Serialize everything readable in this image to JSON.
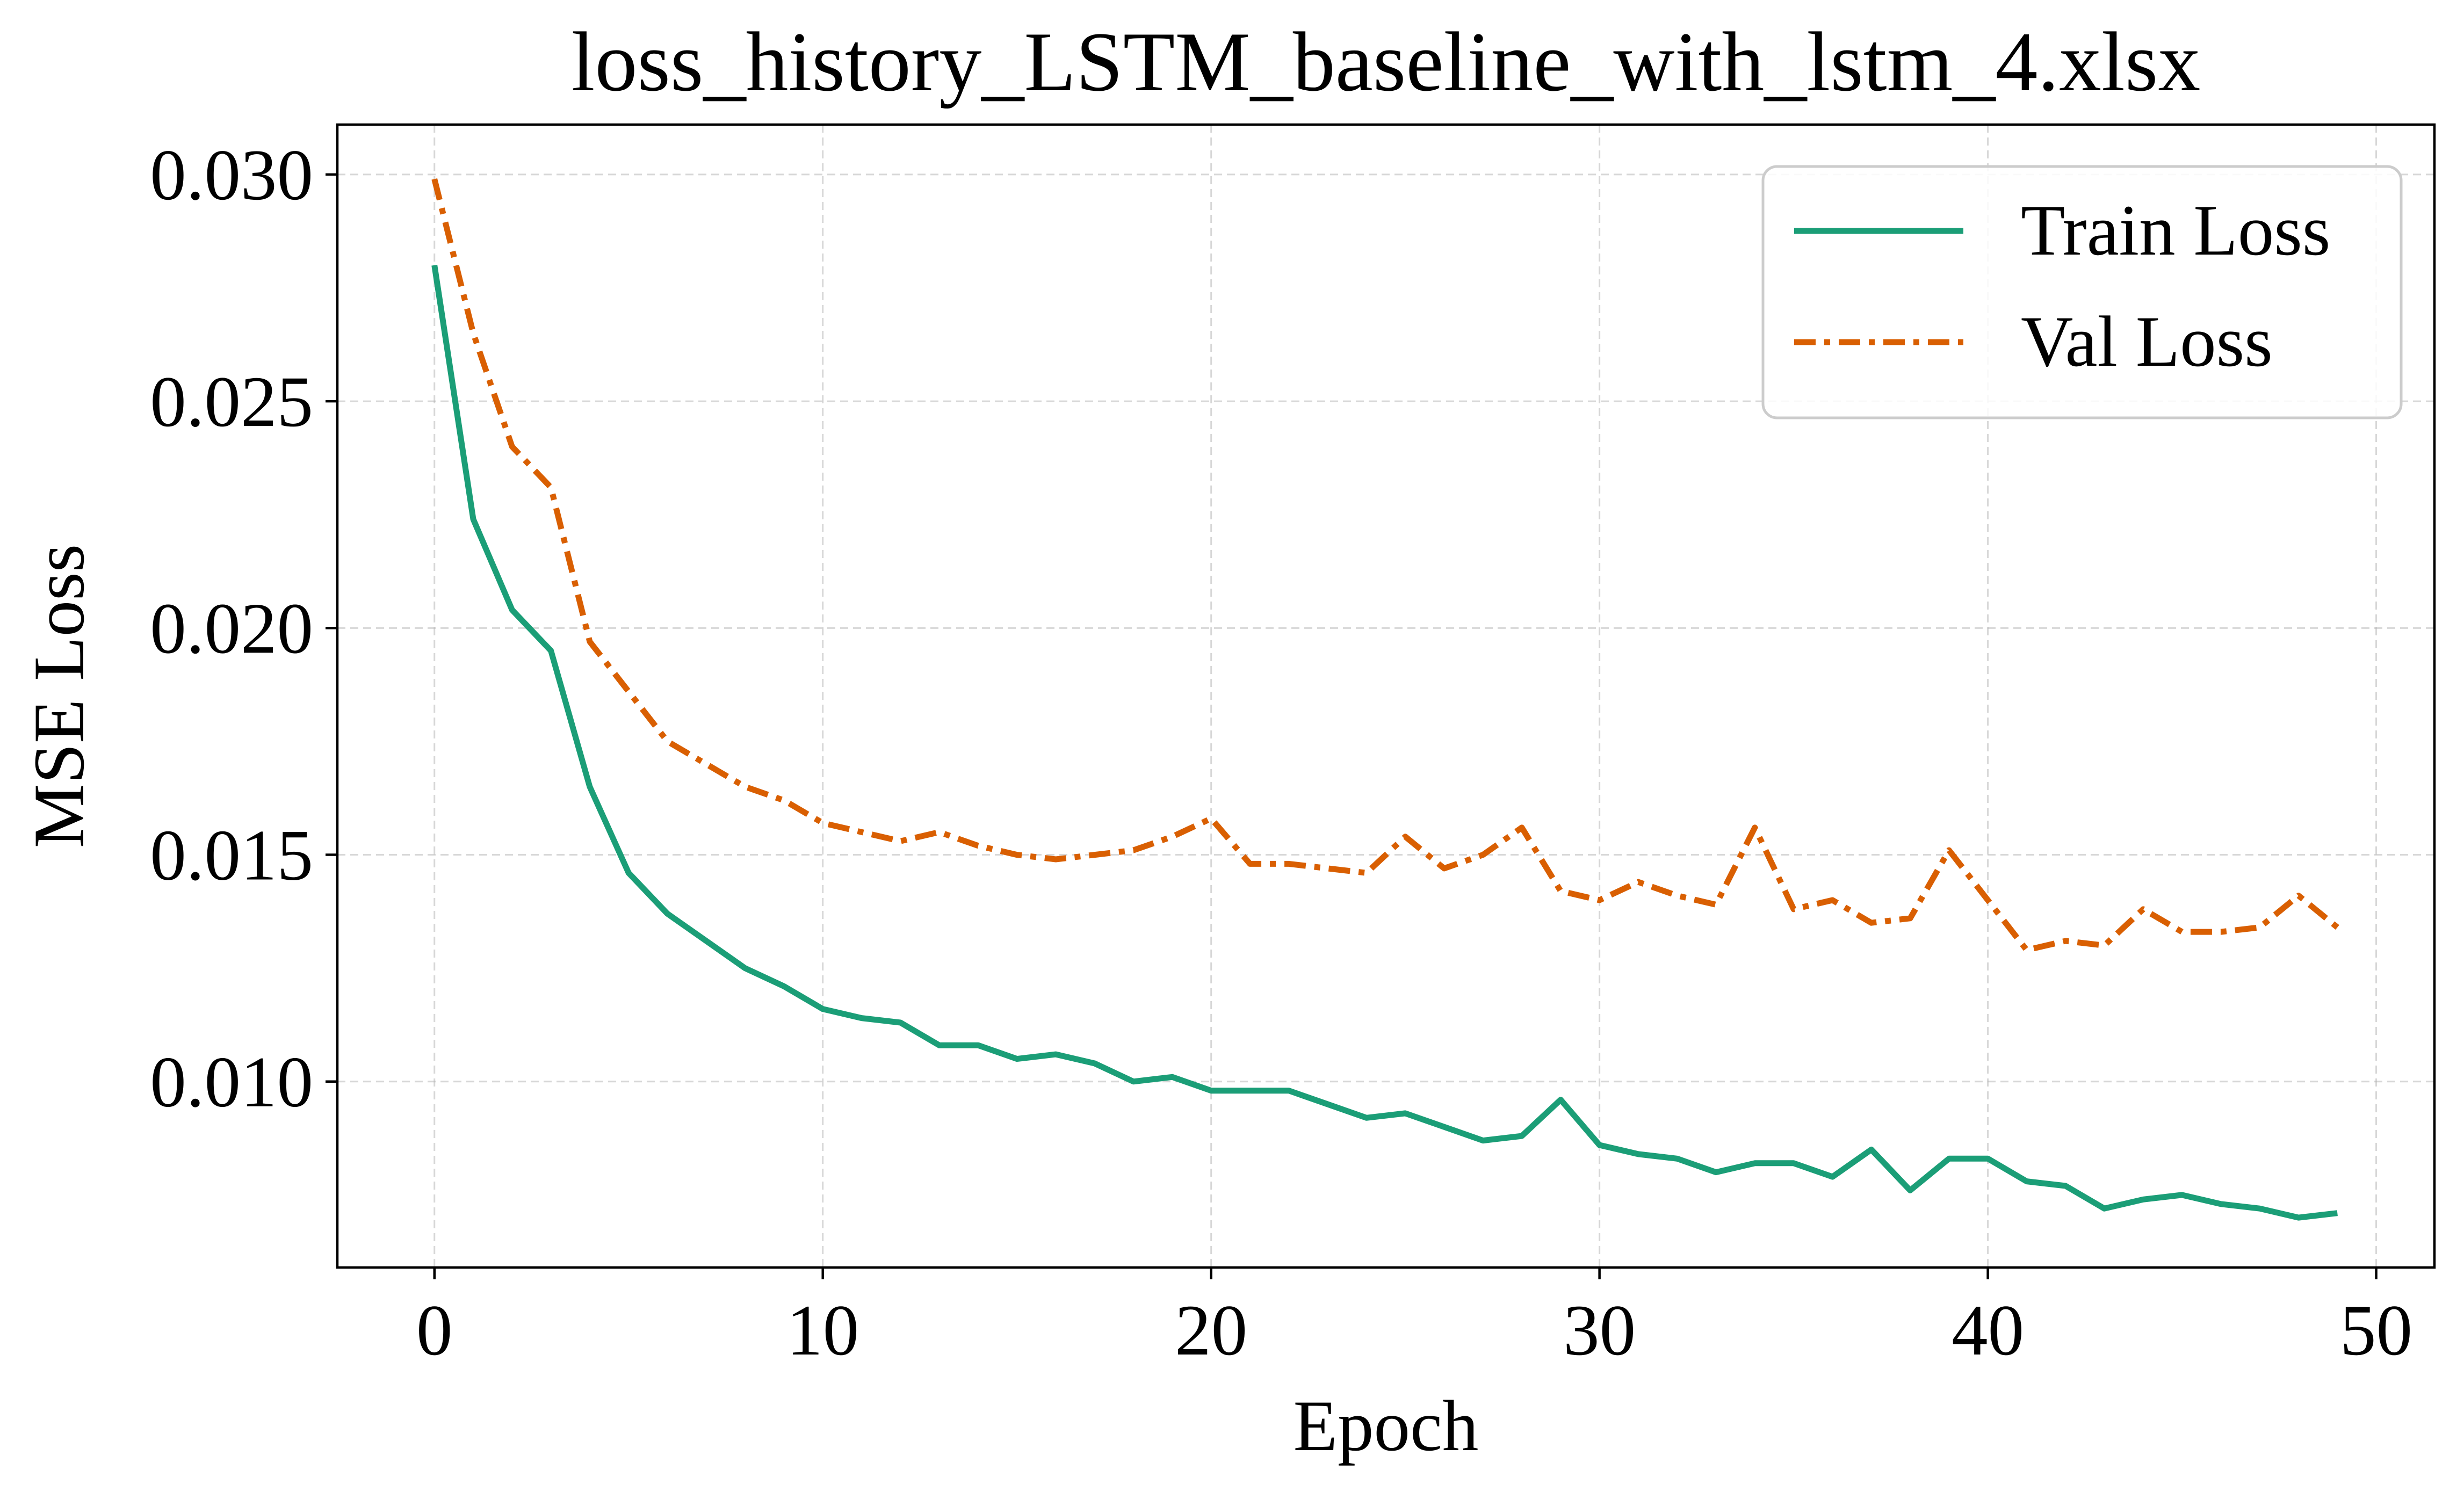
{
  "chart_data": {
    "type": "line",
    "title": "loss_history_LSTM_baseline_with_lstm_4.xlsx",
    "xlabel": "Epoch",
    "ylabel": "MSE Loss",
    "xlim": [
      -2.5,
      51.5
    ],
    "ylim": [
      0.0059,
      0.0311
    ],
    "xticks": [
      0,
      10,
      20,
      30,
      40,
      50
    ],
    "xtick_labels": [
      "0",
      "10",
      "20",
      "30",
      "40",
      "50"
    ],
    "yticks": [
      0.01,
      0.015,
      0.02,
      0.025,
      0.03
    ],
    "ytick_labels": [
      "0.010",
      "0.015",
      "0.020",
      "0.025",
      "0.030"
    ],
    "grid": true,
    "legend_position": "top-right",
    "x": [
      0,
      1,
      2,
      3,
      4,
      5,
      6,
      7,
      8,
      9,
      10,
      11,
      12,
      13,
      14,
      15,
      16,
      17,
      18,
      19,
      20,
      21,
      22,
      23,
      24,
      25,
      26,
      27,
      28,
      29,
      30,
      31,
      32,
      33,
      34,
      35,
      36,
      37,
      38,
      39,
      40,
      41,
      42,
      43,
      44,
      45,
      46,
      47,
      48,
      49
    ],
    "series": [
      {
        "name": "Train Loss",
        "color": "#1b9e77",
        "style": "solid",
        "values": [
          0.028,
          0.0224,
          0.0204,
          0.0195,
          0.0165,
          0.0146,
          0.0137,
          0.0131,
          0.0125,
          0.0121,
          0.0116,
          0.0114,
          0.0113,
          0.0108,
          0.0108,
          0.0105,
          0.0106,
          0.0104,
          0.01,
          0.0101,
          0.0098,
          0.0098,
          0.0098,
          0.0095,
          0.0092,
          0.0093,
          0.009,
          0.0087,
          0.0088,
          0.0096,
          0.0086,
          0.0084,
          0.0083,
          0.008,
          0.0082,
          0.0082,
          0.0079,
          0.0085,
          0.0076,
          0.0083,
          0.0083,
          0.0078,
          0.0077,
          0.0072,
          0.0074,
          0.0075,
          0.0073,
          0.0072,
          0.007,
          0.0071
        ]
      },
      {
        "name": "Val Loss",
        "color": "#d95f02",
        "style": "dashdot",
        "values": [
          0.0299,
          0.0265,
          0.024,
          0.0231,
          0.0197,
          0.0186,
          0.0175,
          0.017,
          0.0165,
          0.0162,
          0.0157,
          0.0155,
          0.0153,
          0.0155,
          0.0152,
          0.015,
          0.0149,
          0.015,
          0.0151,
          0.0154,
          0.0158,
          0.0148,
          0.0148,
          0.0147,
          0.0146,
          0.0154,
          0.0147,
          0.015,
          0.0156,
          0.0142,
          0.014,
          0.0144,
          0.0141,
          0.0139,
          0.0156,
          0.0138,
          0.014,
          0.0135,
          0.0136,
          0.0151,
          0.014,
          0.0129,
          0.0131,
          0.013,
          0.0138,
          0.0133,
          0.0133,
          0.0134,
          0.0141,
          0.0134
        ]
      }
    ]
  }
}
